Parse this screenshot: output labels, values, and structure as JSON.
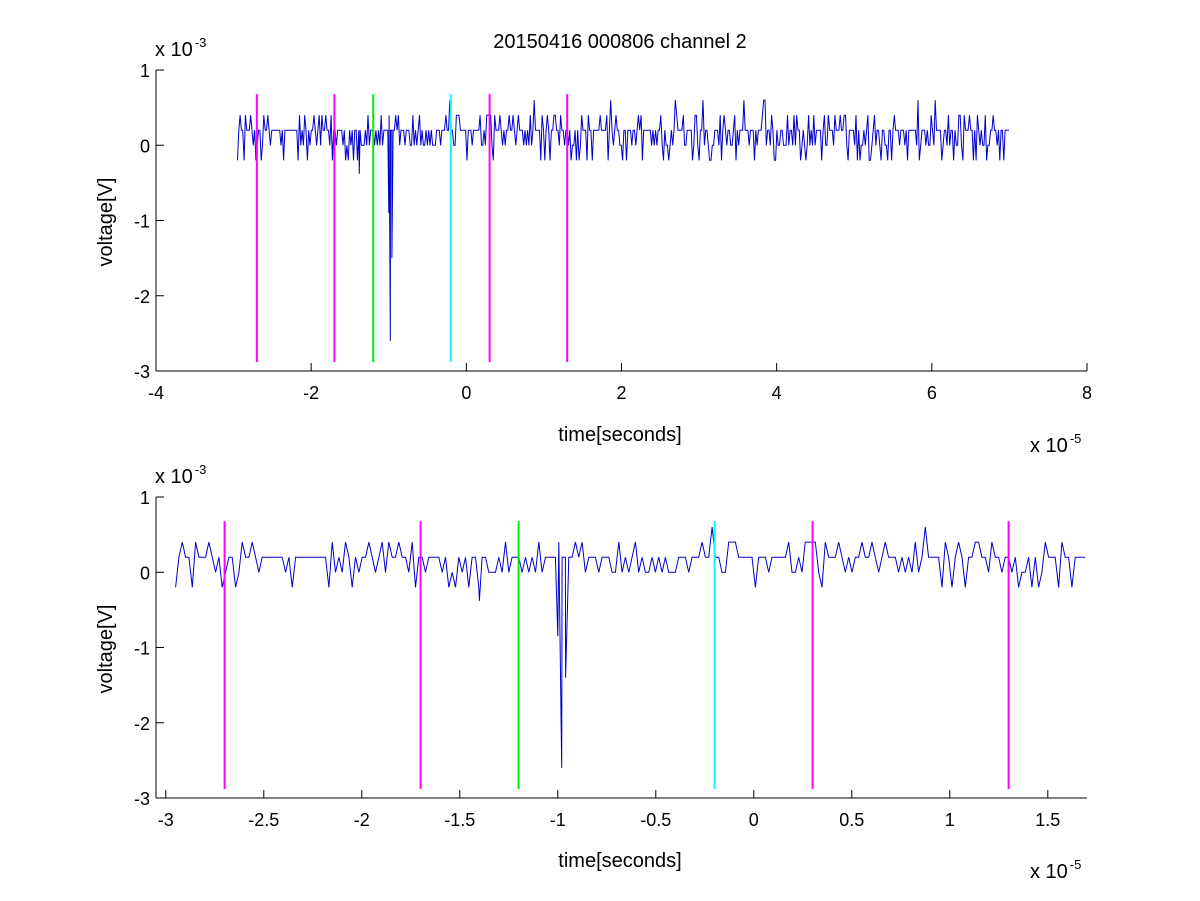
{
  "title": "20150416 000806 channel 2",
  "colors": {
    "signal": "#0000cc",
    "magenta": "#ff00ff",
    "green": "#00ee00",
    "cyan": "#00ffff"
  },
  "chart_data": [
    {
      "type": "line",
      "title": "20150416 000806 channel 2",
      "xlabel": "time[seconds]",
      "ylabel": "voltage[V]",
      "x_multiplier": "x 10",
      "x_exponent": "-5",
      "y_multiplier": "x 10",
      "y_exponent": "-3",
      "xlim": [
        -4,
        8
      ],
      "ylim": [
        -3,
        1
      ],
      "xticks": [
        -4,
        -2,
        0,
        2,
        4,
        6,
        8
      ],
      "xtick_labels": [
        "-4",
        "-2",
        "0",
        "2",
        "4",
        "6",
        "8"
      ],
      "yticks": [
        -3,
        -2,
        -1,
        0,
        1
      ],
      "ytick_labels": [
        "-3",
        "-2",
        "-1",
        "0",
        "1"
      ],
      "grid": false,
      "signal": {
        "x_start": -2.95,
        "x_end": 7.0,
        "spike": [
          {
            "x": -1.38,
            "y": -0.38
          },
          {
            "x": -1.0,
            "y": -0.9
          },
          {
            "x": -0.98,
            "y": -2.6
          },
          {
            "x": -0.96,
            "y": -1.5
          }
        ]
      },
      "markers": [
        {
          "x": -2.7,
          "color": "magenta",
          "y1": -2.88,
          "y2": 0.68
        },
        {
          "x": -1.7,
          "color": "magenta",
          "y1": -2.88,
          "y2": 0.68
        },
        {
          "x": -1.2,
          "color": "green",
          "y1": -2.88,
          "y2": 0.68
        },
        {
          "x": -0.2,
          "color": "cyan",
          "y1": -2.88,
          "y2": 0.68
        },
        {
          "x": 0.3,
          "color": "magenta",
          "y1": -2.88,
          "y2": 0.68
        },
        {
          "x": 1.3,
          "color": "magenta",
          "y1": -2.88,
          "y2": 0.68
        }
      ]
    },
    {
      "type": "line",
      "title": "",
      "xlabel": "time[seconds]",
      "ylabel": "voltage[V]",
      "x_multiplier": "x 10",
      "x_exponent": "-5",
      "y_multiplier": "x 10",
      "y_exponent": "-3",
      "xlim": [
        -3.05,
        1.7
      ],
      "ylim": [
        -3,
        1
      ],
      "xticks": [
        -3,
        -2.5,
        -2,
        -1.5,
        -1,
        -0.5,
        0,
        0.5,
        1,
        1.5
      ],
      "xtick_labels": [
        "-3",
        "-2.5",
        "-2",
        "-1.5",
        "-1",
        "-0.5",
        "0",
        "0.5",
        "1",
        "1.5"
      ],
      "yticks": [
        -3,
        -2,
        -1,
        0,
        1
      ],
      "ytick_labels": [
        "-3",
        "-2",
        "-1",
        "0",
        "1"
      ],
      "grid": false,
      "signal": {
        "x_start": -2.95,
        "x_end": 1.7,
        "spike": [
          {
            "x": -1.4,
            "y": -0.38
          },
          {
            "x": -1.0,
            "y": -0.85
          },
          {
            "x": -0.98,
            "y": -2.6
          },
          {
            "x": -0.96,
            "y": -1.4
          }
        ]
      },
      "markers": [
        {
          "x": -2.7,
          "color": "magenta",
          "y1": -2.88,
          "y2": 0.68
        },
        {
          "x": -1.7,
          "color": "magenta",
          "y1": -2.88,
          "y2": 0.68
        },
        {
          "x": -1.2,
          "color": "green",
          "y1": -2.88,
          "y2": 0.68
        },
        {
          "x": -0.2,
          "color": "cyan",
          "y1": -2.88,
          "y2": 0.68
        },
        {
          "x": 0.3,
          "color": "magenta",
          "y1": -2.88,
          "y2": 0.68
        },
        {
          "x": 1.3,
          "color": "magenta",
          "y1": -2.88,
          "y2": 0.68
        }
      ]
    }
  ]
}
